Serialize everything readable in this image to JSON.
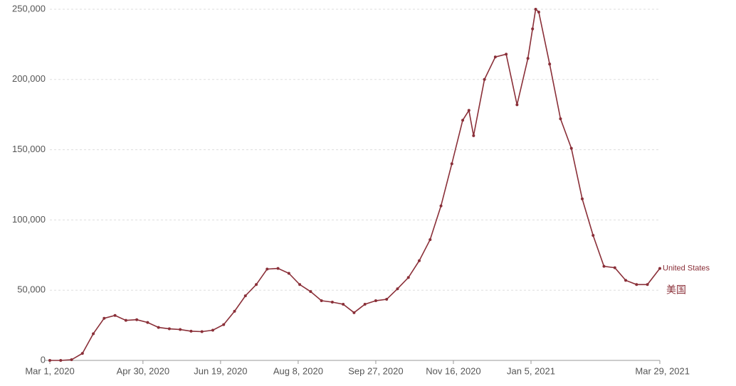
{
  "chart_data": {
    "type": "line",
    "x": [
      "2020-03-01",
      "2020-03-08",
      "2020-03-15",
      "2020-03-22",
      "2020-03-29",
      "2020-04-05",
      "2020-04-12",
      "2020-04-19",
      "2020-04-26",
      "2020-05-03",
      "2020-05-10",
      "2020-05-17",
      "2020-05-24",
      "2020-05-31",
      "2020-06-07",
      "2020-06-14",
      "2020-06-21",
      "2020-06-28",
      "2020-07-05",
      "2020-07-12",
      "2020-07-19",
      "2020-07-26",
      "2020-08-02",
      "2020-08-09",
      "2020-08-16",
      "2020-08-23",
      "2020-08-30",
      "2020-09-06",
      "2020-09-13",
      "2020-09-20",
      "2020-09-27",
      "2020-10-04",
      "2020-10-11",
      "2020-10-18",
      "2020-10-25",
      "2020-11-01",
      "2020-11-08",
      "2020-11-15",
      "2020-11-22",
      "2020-11-26",
      "2020-11-29",
      "2020-12-06",
      "2020-12-13",
      "2020-12-20",
      "2020-12-27",
      "2021-01-03",
      "2021-01-06",
      "2021-01-08",
      "2021-01-10",
      "2021-01-17",
      "2021-01-24",
      "2021-01-31",
      "2021-02-07",
      "2021-02-14",
      "2021-02-21",
      "2021-02-28",
      "2021-03-07",
      "2021-03-14",
      "2021-03-21",
      "2021-03-29"
    ],
    "series": [
      {
        "name": "United States",
        "color": "#8a2f38",
        "values": [
          0,
          0,
          500,
          5000,
          19000,
          30000,
          32000,
          28500,
          29000,
          27000,
          23500,
          22500,
          22000,
          20800,
          20500,
          21500,
          25500,
          35000,
          46000,
          54000,
          65000,
          65500,
          62000,
          54000,
          49000,
          42500,
          41500,
          40000,
          34000,
          40000,
          42500,
          43500,
          51000,
          59000,
          71000,
          86000,
          110000,
          140000,
          171000,
          178000,
          160000,
          200000,
          216000,
          218000,
          182000,
          215000,
          236000,
          250000,
          248000,
          211000,
          172000,
          151000,
          115000,
          89000,
          67000,
          66000,
          57000,
          54000,
          54000,
          65500
        ]
      }
    ],
    "annotation": "美国",
    "xlim": [
      "2020-03-01",
      "2021-03-29"
    ],
    "xticks": [
      {
        "value": "2020-03-01",
        "label": "Mar 1, 2020"
      },
      {
        "value": "2020-04-30",
        "label": "Apr 30, 2020"
      },
      {
        "value": "2020-06-19",
        "label": "Jun 19, 2020"
      },
      {
        "value": "2020-08-08",
        "label": "Aug 8, 2020"
      },
      {
        "value": "2020-09-27",
        "label": "Sep 27, 2020"
      },
      {
        "value": "2020-11-16",
        "label": "Nov 16, 2020"
      },
      {
        "value": "2021-01-05",
        "label": "Jan 5, 2021"
      },
      {
        "value": "2021-03-29",
        "label": "Mar 29, 2021"
      }
    ],
    "ylim": [
      0,
      250000
    ],
    "yticks": [
      0,
      {
        "value": 50000,
        "label": "50,000"
      },
      {
        "value": 100000,
        "label": "100,000"
      },
      {
        "value": 150000,
        "label": "150,000"
      },
      {
        "value": 200000,
        "label": "200,000"
      },
      {
        "value": 250000,
        "label": "250,000"
      }
    ],
    "grid": true
  }
}
